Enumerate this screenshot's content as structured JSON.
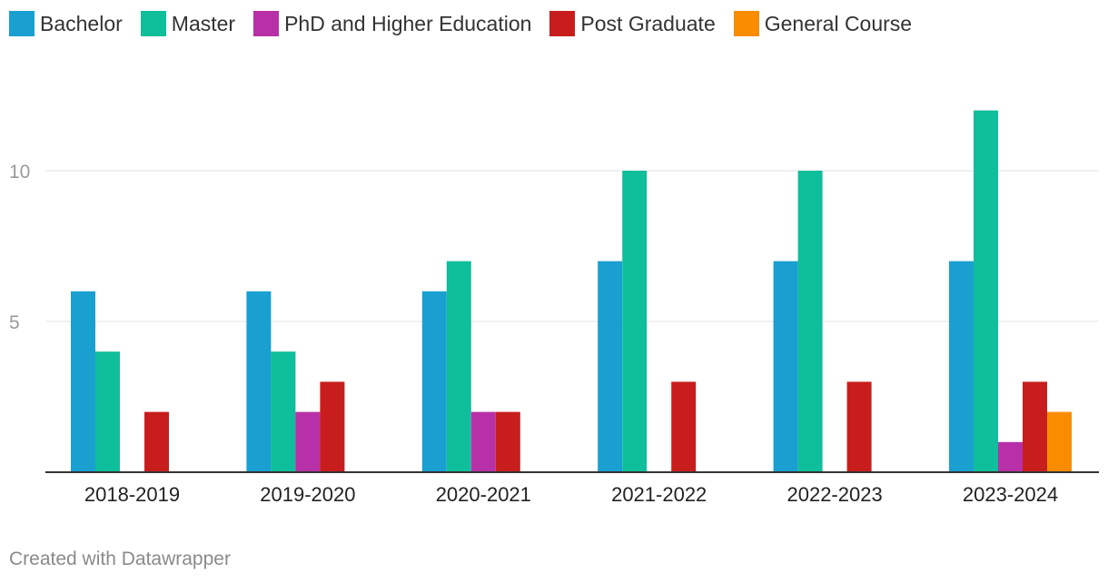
{
  "chart_data": {
    "type": "bar",
    "categories": [
      "2018-2019",
      "2019-2020",
      "2020-2021",
      "2021-2022",
      "2022-2023",
      "2023-2024"
    ],
    "series": [
      {
        "name": "Bachelor",
        "color": "#1a9fd1",
        "values": [
          6,
          6,
          6,
          7,
          7,
          7
        ]
      },
      {
        "name": "Master",
        "color": "#0fbe9b",
        "values": [
          4,
          4,
          7,
          10,
          10,
          12
        ]
      },
      {
        "name": "PhD and Higher Education",
        "color": "#b730a7",
        "values": [
          0,
          2,
          2,
          0,
          0,
          1
        ]
      },
      {
        "name": "Post Graduate",
        "color": "#c71e1d",
        "values": [
          2,
          3,
          2,
          3,
          3,
          3
        ]
      },
      {
        "name": "General Course",
        "color": "#fa8c00",
        "values": [
          0,
          0,
          0,
          0,
          0,
          2
        ]
      }
    ],
    "y_ticks": [
      "5",
      "10"
    ],
    "y_tick_values": [
      5,
      10
    ],
    "ylim": [
      0,
      12
    ],
    "grid": true,
    "legend": "top-left"
  },
  "footer": {
    "credit": "Created with Datawrapper"
  }
}
